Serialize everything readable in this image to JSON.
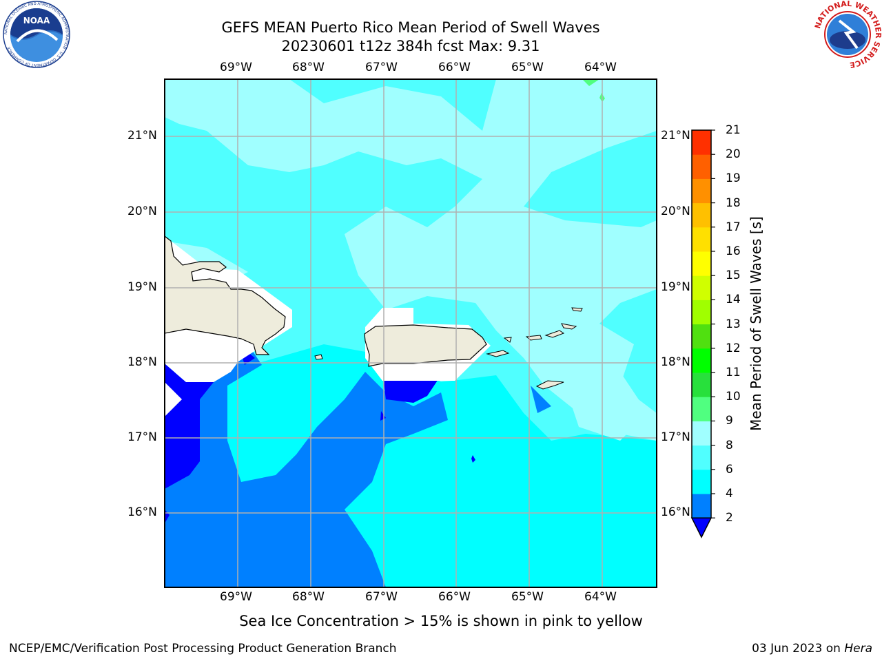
{
  "header": {
    "title_line1": "GEFS MEAN Puerto Rico Mean Period of Swell Waves",
    "title_line2": "20230601 t12z 384h fcst   Max: 9.31"
  },
  "map": {
    "lon_labels": [
      "69°W",
      "68°W",
      "67°W",
      "66°W",
      "65°W",
      "64°W"
    ],
    "lat_labels": [
      "21°N",
      "20°N",
      "19°N",
      "18°N",
      "17°N",
      "16°N"
    ],
    "land_color": "#eeecdc",
    "no_data_color": "#ffffff",
    "grid_color": "#b0b0b0"
  },
  "colorbar": {
    "title": "Mean Period of Swell Waves [s]",
    "levels": [
      "2",
      "4",
      "6",
      "8",
      "9",
      "10",
      "11",
      "12",
      "13",
      "14",
      "15",
      "16",
      "17",
      "18",
      "19",
      "20",
      "21"
    ],
    "colors": [
      "#0080ff",
      "#00ffff",
      "#50ffff",
      "#a0ffff",
      "#50ff80",
      "#28e03c",
      "#00ff00",
      "#50e010",
      "#a0ff00",
      "#d0ff00",
      "#ffff00",
      "#ffe000",
      "#ffc000",
      "#ff9000",
      "#ff6000",
      "#ff3000"
    ],
    "extend_color": "#0000ff"
  },
  "caption": "Sea Ice Concentration > 15% is shown in pink to yellow",
  "footer": {
    "left": "NCEP/EMC/Verification Post Processing Product Generation Branch",
    "date": "03 Jun 2023 on",
    "machine": "Hera"
  },
  "logos": {
    "noaa_text": "NOAA",
    "noaa_ring": "NATIONAL OCEANIC AND ATMOSPHERIC ADMINISTRATION · U.S. DEPARTMENT OF COMMERCE",
    "nws_ring": "NATIONAL WEATHER SERVICE"
  }
}
